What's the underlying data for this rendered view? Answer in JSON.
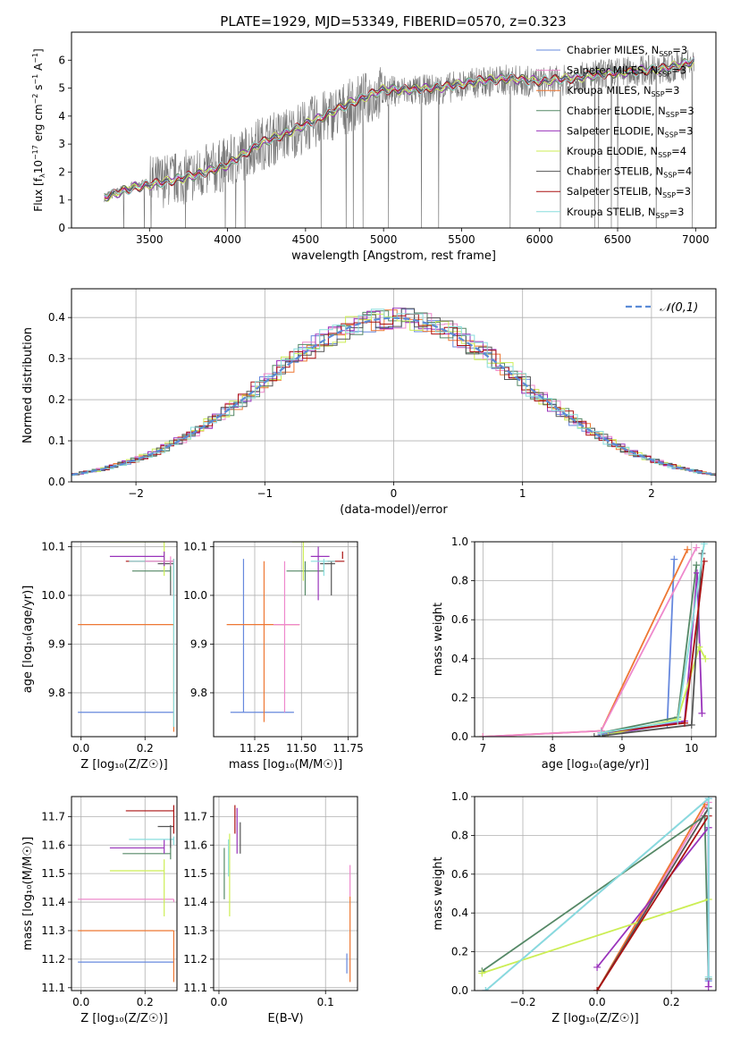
{
  "title": "PLATE=1929, MJD=53349, FIBERID=0570, z=0.323",
  "models": [
    {
      "name": "Chabrier MILES",
      "n": "3",
      "color": "#6688dd"
    },
    {
      "name": "Salpeter MILES",
      "n": "3",
      "color": "#ee88cc"
    },
    {
      "name": "Kroupa MILES",
      "n": "3",
      "color": "#ee7733"
    },
    {
      "name": "Chabrier ELODIE",
      "n": "3",
      "color": "#558866"
    },
    {
      "name": "Salpeter ELODIE",
      "n": "3",
      "color": "#9933bb"
    },
    {
      "name": "Kroupa ELODIE",
      "n": "4",
      "color": "#ccee55"
    },
    {
      "name": "Chabrier STELIB",
      "n": "4",
      "color": "#555555"
    },
    {
      "name": "Salpeter STELIB",
      "n": "3",
      "color": "#aa1111"
    },
    {
      "name": "Kroupa STELIB",
      "n": "3",
      "color": "#88dddd"
    }
  ],
  "nssp_sub": "SSP",
  "chart_data": [
    {
      "id": "spectrum",
      "type": "line",
      "xlabel": "wavelength [Angstrom, rest frame]",
      "ylabel_parts": [
        "Flux [f",
        "λ",
        "10",
        "−17",
        " erg cm",
        "−2",
        " s",
        "−1",
        " A",
        "−1",
        "]"
      ],
      "xlim": [
        3000,
        7130
      ],
      "ylim": [
        0,
        7
      ],
      "xticks": [
        3500,
        4000,
        4500,
        5000,
        5500,
        6000,
        6500,
        7000
      ],
      "yticks": [
        0,
        1,
        2,
        3,
        4,
        5,
        6
      ],
      "data_x": [
        3210,
        3400,
        3600,
        3800,
        4000,
        4200,
        4400,
        4600,
        4800,
        5000,
        5200,
        5400,
        5600,
        5800,
        6000,
        6200,
        6400,
        6600,
        6800,
        6990
      ],
      "data_y": [
        1.1,
        1.5,
        1.7,
        1.9,
        2.3,
        3.0,
        3.4,
        3.9,
        4.4,
        4.9,
        4.9,
        5.0,
        5.2,
        5.3,
        5.2,
        5.3,
        5.5,
        5.6,
        5.7,
        5.9
      ],
      "model_y": [
        1.1,
        1.45,
        1.65,
        1.9,
        2.25,
        3.0,
        3.45,
        3.95,
        4.5,
        4.95,
        4.95,
        5.05,
        5.25,
        5.35,
        5.25,
        5.35,
        5.5,
        5.6,
        5.7,
        5.95
      ]
    },
    {
      "id": "residuals",
      "type": "line",
      "xlabel": "(data-model)/error",
      "ylabel": "Normed distribution",
      "legend": "𝒩(0,1)",
      "xlim": [
        -2.5,
        2.5
      ],
      "ylim": [
        0,
        0.47
      ],
      "xticks": [
        -2,
        -1,
        0,
        1,
        2
      ],
      "xtick_labels": [
        "−2",
        "−1",
        "0",
        "1",
        "2"
      ],
      "yticks": [
        0.0,
        0.1,
        0.2,
        0.3,
        0.4
      ],
      "ytick_labels": [
        "0.0",
        "0.1",
        "0.2",
        "0.3",
        "0.4"
      ]
    },
    {
      "id": "age_vs_z",
      "type": "scatter",
      "xlabel": "Z [log₁₀(Z/Z☉)]",
      "ylabel": "age  [log₁₀(age/yr)]",
      "xlim": [
        -0.03,
        0.3
      ],
      "ylim": [
        9.71,
        10.11
      ],
      "xticks": [
        0.0,
        0.2
      ],
      "xtick_labels": [
        "0.0",
        "0.2"
      ],
      "yticks": [
        9.8,
        9.9,
        10.0,
        10.1
      ],
      "ytick_labels": [
        "9.8",
        "9.9",
        "10.0",
        "10.1"
      ],
      "points": [
        {
          "m": 0,
          "x": 0.29,
          "y": 9.76,
          "xl": -0.01,
          "xh": 0.29,
          "yl": 9.76,
          "yh": 9.76
        },
        {
          "m": 2,
          "x": 0.29,
          "y": 9.94,
          "xl": -0.01,
          "xh": 0.29,
          "yl": 9.72,
          "yh": 9.94
        },
        {
          "m": 7,
          "x": 0.29,
          "y": 10.07,
          "xl": 0.14,
          "xh": 0.29,
          "yl": 10.0,
          "yh": 10.075
        },
        {
          "m": 6,
          "x": 0.28,
          "y": 10.065,
          "xl": 0.24,
          "xh": 0.29,
          "yl": 10.0,
          "yh": 10.07
        },
        {
          "m": 8,
          "x": 0.29,
          "y": 10.07,
          "xl": 0.15,
          "xh": 0.29,
          "yl": 9.73,
          "yh": 10.075
        },
        {
          "m": 3,
          "x": 0.28,
          "y": 10.05,
          "xl": 0.16,
          "xh": 0.28,
          "yl": 10.03,
          "yh": 10.07
        },
        {
          "m": 5,
          "x": 0.26,
          "y": 10.11,
          "xl": 0.09,
          "xh": 0.26,
          "yl": 10.04,
          "yh": 10.11
        },
        {
          "m": 4,
          "x": 0.26,
          "y": 10.08,
          "xl": 0.09,
          "xh": 0.26,
          "yl": 10.06,
          "yh": 10.09
        },
        {
          "m": 1,
          "x": 0.28,
          "y": 10.07,
          "xl": 0.2,
          "xh": 0.29,
          "yl": 10.06,
          "yh": 10.08
        }
      ]
    },
    {
      "id": "age_vs_mass",
      "type": "scatter",
      "xlabel": "mass [log₁₀(M/M☉)]",
      "ylabel": "",
      "xlim": [
        11.03,
        11.8
      ],
      "ylim": [
        9.71,
        10.11
      ],
      "xticks": [
        11.25,
        11.5,
        11.75
      ],
      "xtick_labels": [
        "11.25",
        "11.50",
        "11.75"
      ],
      "yticks": [
        9.8,
        9.9,
        10.0,
        10.1
      ],
      "ytick_labels": [
        "9.8",
        "9.9",
        "10.0",
        "10.1"
      ],
      "points": [
        {
          "m": 0,
          "x": 11.19,
          "y": 9.76,
          "xl": 11.12,
          "xh": 11.46,
          "yl": 9.76,
          "yh": 10.075
        },
        {
          "m": 2,
          "x": 11.3,
          "y": 9.94,
          "xl": 11.1,
          "xh": 11.49,
          "yl": 9.74,
          "yh": 10.07
        },
        {
          "m": 1,
          "x": 11.41,
          "y": 9.94,
          "xl": 11.35,
          "xh": 11.49,
          "yl": 9.76,
          "yh": 10.07
        },
        {
          "m": 3,
          "x": 11.52,
          "y": 10.05,
          "xl": 11.42,
          "xh": 11.62,
          "yl": 10.0,
          "yh": 10.07
        },
        {
          "m": 5,
          "x": 11.51,
          "y": 10.11,
          "xl": 11.45,
          "xh": 11.55,
          "yl": 10.03,
          "yh": 10.11
        },
        {
          "m": 4,
          "x": 11.59,
          "y": 10.08,
          "xl": 11.55,
          "xh": 11.65,
          "yl": 9.99,
          "yh": 10.1
        },
        {
          "m": 6,
          "x": 11.66,
          "y": 10.065,
          "xl": 11.6,
          "xh": 11.68,
          "yl": 10.0,
          "yh": 10.07
        },
        {
          "m": 7,
          "x": 11.72,
          "y": 10.07,
          "xl": 11.64,
          "xh": 11.73,
          "yl": 10.09,
          "yh": 10.075
        },
        {
          "m": 8,
          "x": 11.62,
          "y": 10.07,
          "xl": 11.55,
          "xh": 11.68,
          "yl": 10.04,
          "yh": 10.075
        }
      ]
    },
    {
      "id": "weight_vs_age",
      "type": "line",
      "xlabel": "age  [log₁₀(age/yr)]",
      "ylabel": "mass weight",
      "xlim": [
        6.88,
        10.35
      ],
      "ylim": [
        0,
        1
      ],
      "xticks": [
        7,
        8,
        9,
        10
      ],
      "xtick_labels": [
        "7",
        "8",
        "9",
        "10"
      ],
      "yticks": [
        0,
        0.2,
        0.4,
        0.6,
        0.8,
        1.0
      ],
      "ytick_labels": [
        "0.0",
        "0.2",
        "0.4",
        "0.6",
        "0.8",
        "1.0"
      ],
      "series": [
        {
          "m": 0,
          "x": [
            8.7,
            9.65,
            9.75
          ],
          "y": [
            0.01,
            0.06,
            0.91
          ]
        },
        {
          "m": 2,
          "x": [
            7.0,
            8.7,
            9.94
          ],
          "y": [
            0.0,
            0.03,
            0.96
          ]
        },
        {
          "m": 1,
          "x": [
            7.0,
            8.7,
            10.07
          ],
          "y": [
            0.0,
            0.03,
            0.97
          ]
        },
        {
          "m": 3,
          "x": [
            8.7,
            9.8,
            10.07
          ],
          "y": [
            0.02,
            0.1,
            0.88
          ]
        },
        {
          "m": 4,
          "x": [
            8.8,
            9.9,
            10.08,
            10.15
          ],
          "y": [
            0.01,
            0.08,
            0.84,
            0.12
          ]
        },
        {
          "m": 5,
          "x": [
            8.8,
            9.8,
            10.11,
            10.2
          ],
          "y": [
            0.01,
            0.09,
            0.46,
            0.4
          ]
        },
        {
          "m": 6,
          "x": [
            8.6,
            10.0,
            10.15
          ],
          "y": [
            0.0,
            0.06,
            0.94
          ]
        },
        {
          "m": 7,
          "x": [
            8.7,
            9.9,
            10.18
          ],
          "y": [
            0.02,
            0.07,
            0.9
          ]
        },
        {
          "m": 8,
          "x": [
            8.7,
            9.8,
            10.18
          ],
          "y": [
            0.02,
            0.08,
            0.99
          ]
        }
      ]
    },
    {
      "id": "mass_vs_z",
      "type": "scatter",
      "xlabel": "Z [log₁₀(Z/Z☉)]",
      "ylabel": "mass [log₁₀(M/M☉)]",
      "xlim": [
        -0.03,
        0.3
      ],
      "ylim": [
        11.09,
        11.77
      ],
      "xticks": [
        0.0,
        0.2
      ],
      "xtick_labels": [
        "0.0",
        "0.2"
      ],
      "yticks": [
        11.1,
        11.2,
        11.3,
        11.4,
        11.5,
        11.6,
        11.7
      ],
      "ytick_labels": [
        "11.1",
        "11.2",
        "11.3",
        "11.4",
        "11.5",
        "11.6",
        "11.7"
      ],
      "points": [
        {
          "m": 0,
          "x": 0.29,
          "y": 11.19,
          "xl": -0.01,
          "xh": 0.29,
          "yl": 11.19,
          "yh": 11.19
        },
        {
          "m": 2,
          "x": 0.29,
          "y": 11.3,
          "xl": -0.01,
          "xh": 0.29,
          "yl": 11.12,
          "yh": 11.3
        },
        {
          "m": 1,
          "x": 0.29,
          "y": 11.41,
          "xl": -0.01,
          "xh": 0.29,
          "yl": 11.4,
          "yh": 11.41
        },
        {
          "m": 5,
          "x": 0.26,
          "y": 11.51,
          "xl": 0.09,
          "xh": 0.26,
          "yl": 11.35,
          "yh": 11.55
        },
        {
          "m": 3,
          "x": 0.28,
          "y": 11.57,
          "xl": 0.13,
          "xh": 0.28,
          "yl": 11.55,
          "yh": 11.62
        },
        {
          "m": 4,
          "x": 0.26,
          "y": 11.59,
          "xl": 0.09,
          "xh": 0.26,
          "yl": 11.57,
          "yh": 11.62
        },
        {
          "m": 8,
          "x": 0.29,
          "y": 11.62,
          "xl": 0.15,
          "xh": 0.29,
          "yl": 11.6,
          "yh": 11.63
        },
        {
          "m": 6,
          "x": 0.28,
          "y": 11.665,
          "xl": 0.24,
          "xh": 0.29,
          "yl": 11.59,
          "yh": 11.67
        },
        {
          "m": 7,
          "x": 0.29,
          "y": 11.72,
          "xl": 0.14,
          "xh": 0.29,
          "yl": 11.64,
          "yh": 11.74
        }
      ]
    },
    {
      "id": "mass_vs_ebv",
      "type": "scatter",
      "xlabel": "E(B-V)",
      "ylabel": "",
      "xlim": [
        -0.005,
        0.13
      ],
      "ylim": [
        11.09,
        11.77
      ],
      "xticks": [
        0.0,
        0.1
      ],
      "xtick_labels": [
        "0.0",
        "0.1"
      ],
      "yticks": [
        11.1,
        11.2,
        11.3,
        11.4,
        11.5,
        11.6,
        11.7
      ],
      "ytick_labels": [
        "11.1",
        "11.2",
        "11.3",
        "11.4",
        "11.5",
        "11.6",
        "11.7"
      ],
      "points": [
        {
          "m": 0,
          "x": 0.12,
          "y": 11.19,
          "xl": 0.12,
          "xh": 0.12,
          "yl": 11.15,
          "yh": 11.22
        },
        {
          "m": 2,
          "x": 0.123,
          "y": 11.3,
          "xl": 0.123,
          "xh": 0.123,
          "yl": 11.12,
          "yh": 11.42
        },
        {
          "m": 1,
          "x": 0.123,
          "y": 11.47,
          "xl": 0.123,
          "xh": 0.123,
          "yl": 11.42,
          "yh": 11.53
        },
        {
          "m": 3,
          "x": 0.005,
          "y": 11.52,
          "xl": 0.005,
          "xh": 0.005,
          "yl": 11.41,
          "yh": 11.59
        },
        {
          "m": 5,
          "x": 0.01,
          "y": 11.5,
          "xl": 0.01,
          "xh": 0.01,
          "yl": 11.35,
          "yh": 11.64
        },
        {
          "m": 8,
          "x": 0.009,
          "y": 11.55,
          "xl": 0.009,
          "xh": 0.009,
          "yl": 11.49,
          "yh": 11.62
        },
        {
          "m": 4,
          "x": 0.017,
          "y": 11.66,
          "xl": 0.017,
          "xh": 0.017,
          "yl": 11.57,
          "yh": 11.73
        },
        {
          "m": 6,
          "x": 0.02,
          "y": 11.62,
          "xl": 0.02,
          "xh": 0.02,
          "yl": 11.57,
          "yh": 11.68
        },
        {
          "m": 7,
          "x": 0.015,
          "y": 11.69,
          "xl": 0.015,
          "xh": 0.015,
          "yl": 11.64,
          "yh": 11.74
        }
      ]
    },
    {
      "id": "weight_vs_z",
      "type": "line",
      "xlabel": "Z [log₁₀(Z/Z☉)]",
      "ylabel": "mass weight",
      "xlim": [
        -0.33,
        0.32
      ],
      "ylim": [
        0,
        1
      ],
      "xticks": [
        -0.2,
        0.0,
        0.2
      ],
      "xtick_labels": [
        "−0.2",
        "0.0",
        "0.2"
      ],
      "yticks": [
        0,
        0.2,
        0.4,
        0.6,
        0.8,
        1.0
      ],
      "ytick_labels": [
        "0.0",
        "0.2",
        "0.4",
        "0.6",
        "0.8",
        "1.0"
      ],
      "series": [
        {
          "m": 0,
          "x": [
            -0.3,
            0.3,
            0.3
          ],
          "y": [
            0.0,
            0.99,
            0.05
          ]
        },
        {
          "m": 1,
          "x": [
            0.0,
            0.3
          ],
          "y": [
            0.0,
            0.97
          ]
        },
        {
          "m": 2,
          "x": [
            0.0,
            0.29
          ],
          "y": [
            0.0,
            0.96
          ]
        },
        {
          "m": 3,
          "x": [
            -0.31,
            0.29,
            0.3
          ],
          "y": [
            0.1,
            0.9,
            0.06
          ]
        },
        {
          "m": 4,
          "x": [
            0.0,
            0.3,
            0.3
          ],
          "y": [
            0.12,
            0.84,
            0.02
          ]
        },
        {
          "m": 5,
          "x": [
            -0.31,
            0.3
          ],
          "y": [
            0.09,
            0.47
          ]
        },
        {
          "m": 6,
          "x": [
            0.0,
            0.3
          ],
          "y": [
            0.0,
            0.94
          ]
        },
        {
          "m": 7,
          "x": [
            0.0,
            0.3
          ],
          "y": [
            0.0,
            0.9
          ]
        },
        {
          "m": 8,
          "x": [
            -0.3,
            0.3,
            0.3
          ],
          "y": [
            0.0,
            0.99,
            0.07
          ]
        }
      ]
    }
  ]
}
